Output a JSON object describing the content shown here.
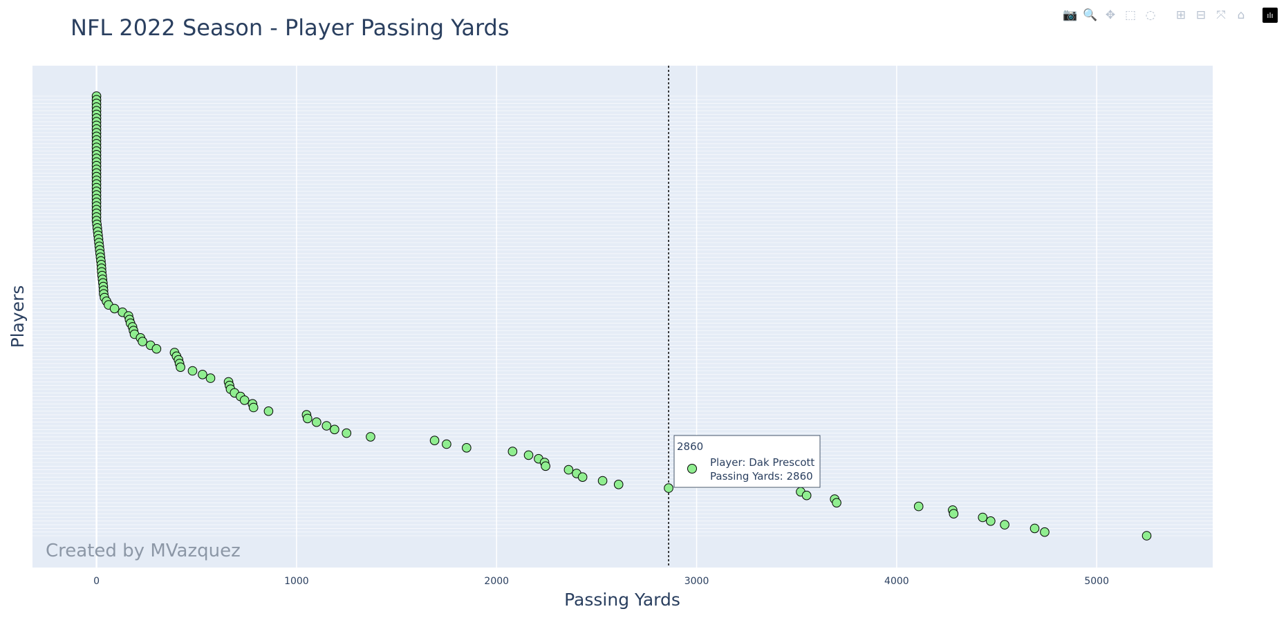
{
  "modebar": {
    "buttons": [
      {
        "name": "camera-icon",
        "glyph": "📷"
      },
      {
        "name": "zoom-icon",
        "glyph": "🔍",
        "active": true
      },
      {
        "name": "pan-icon",
        "glyph": "✥"
      },
      {
        "name": "box-select-icon",
        "glyph": "⬚"
      },
      {
        "name": "lasso-select-icon",
        "glyph": "◌"
      },
      {
        "name": "zoom-in-icon",
        "glyph": "⊞"
      },
      {
        "name": "zoom-out-icon",
        "glyph": "⊟"
      },
      {
        "name": "autoscale-icon",
        "glyph": "⤧"
      },
      {
        "name": "reset-axes-icon",
        "glyph": "⌂"
      }
    ],
    "logo_glyph": "ılı"
  },
  "chart_data": {
    "type": "scatter",
    "title": "NFL 2022 Season - Player Passing Yards",
    "xlabel": "Passing Yards",
    "ylabel": "Players",
    "xlim": [
      -320,
      5580
    ],
    "xticks": [
      0,
      1000,
      2000,
      3000,
      4000,
      5000
    ],
    "grid": true,
    "marker_color": "#90ee90",
    "marker_outline": "#000000",
    "plot_bg": "#e5ecf6",
    "annotation": "Created by MVazquez",
    "series": [
      {
        "values": [
          0,
          0,
          0,
          0,
          0,
          0,
          0,
          0,
          0,
          0,
          0,
          0,
          0,
          0,
          0,
          0,
          0,
          0,
          0,
          0,
          0,
          0,
          0,
          0,
          0,
          0,
          0,
          0,
          0,
          0,
          0,
          0,
          0,
          0,
          0,
          2,
          4,
          6,
          8,
          10,
          12,
          14,
          16,
          18,
          20,
          22,
          24,
          25,
          26,
          28,
          30,
          32,
          34,
          35,
          36,
          40,
          50,
          60,
          90,
          130,
          160,
          165,
          170,
          180,
          185,
          190,
          220,
          230,
          270,
          300,
          390,
          400,
          410,
          415,
          420,
          480,
          530,
          570,
          660,
          665,
          670,
          690,
          720,
          740,
          780,
          785,
          860,
          1050,
          1055,
          1100,
          1150,
          1190,
          1250,
          1370,
          1690,
          1750,
          1850,
          2080,
          2160,
          2210,
          2240,
          2245,
          2360,
          2400,
          2430,
          2530,
          2610,
          2860,
          3520,
          3550,
          3690,
          3700,
          4110,
          4280,
          4285,
          4430,
          4470,
          4540,
          4690,
          4740,
          5250
        ]
      }
    ],
    "hover": {
      "x_value": "2860",
      "player_line": "Player: Dak Prescott",
      "yards_line": "Passing Yards: 2860"
    }
  }
}
